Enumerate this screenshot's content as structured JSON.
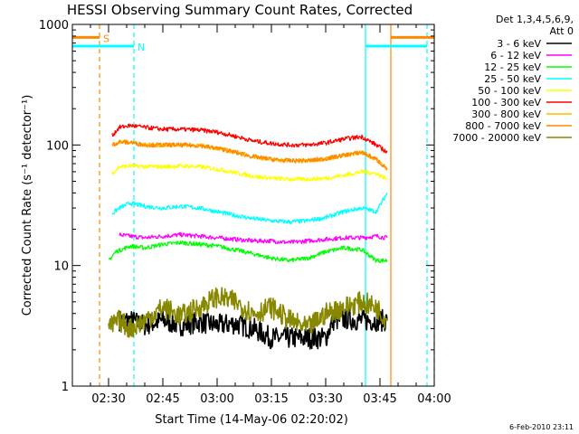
{
  "chart_data": {
    "type": "line",
    "title": "HESSI Observing Summary Count Rates, Corrected",
    "xlabel": "Start Time (14-May-06 02:20:02)",
    "ylabel": "Corrected Count Rate (s⁻¹ detector⁻¹)",
    "xlim_minutes": [
      20.0,
      120.0
    ],
    "ylim": [
      1,
      1000
    ],
    "yscale": "log",
    "x_ticks": [
      {
        "minute": 30,
        "label": "02:30"
      },
      {
        "minute": 45,
        "label": "02:45"
      },
      {
        "minute": 60,
        "label": "03:00"
      },
      {
        "minute": 75,
        "label": "03:15"
      },
      {
        "minute": 90,
        "label": "03:30"
      },
      {
        "minute": 105,
        "label": "03:45"
      },
      {
        "minute": 120,
        "label": "04:00"
      }
    ],
    "y_ticks": [
      {
        "value": 1,
        "label": "1"
      },
      {
        "value": 10,
        "label": "10"
      },
      {
        "value": 100,
        "label": "100"
      },
      {
        "value": 1000,
        "label": "1000"
      }
    ],
    "legend_header": [
      "Det 1,3,4,5,6,9,",
      "Att 0"
    ],
    "legend_placement": "right",
    "footer_date": "6-Feb-2010 23:11",
    "series": [
      {
        "name": "3 - 6 keV",
        "color": "#000000",
        "x": [
          33,
          36,
          40,
          45,
          50,
          55,
          60,
          65,
          70,
          75,
          80,
          85,
          90,
          92,
          96,
          100,
          104,
          107
        ],
        "y": [
          3.5,
          3.5,
          3.2,
          3.5,
          3.2,
          3.4,
          3.2,
          3.3,
          3.0,
          2.5,
          2.5,
          2.5,
          2.5,
          3.5,
          3.6,
          3.5,
          3.5,
          3.5
        ]
      },
      {
        "name": "6 - 12 keV",
        "color": "#ff00ff",
        "x": [
          33,
          36,
          40,
          45,
          50,
          55,
          60,
          65,
          70,
          75,
          80,
          85,
          90,
          95,
          100,
          104,
          107
        ],
        "y": [
          18,
          17.5,
          17,
          17.5,
          18,
          17.5,
          17,
          16.5,
          16,
          16,
          15.5,
          16,
          16.5,
          17,
          17,
          17.5,
          17
        ]
      },
      {
        "name": "12 - 25 keV",
        "color": "#00ff00",
        "x": [
          30,
          32,
          36,
          40,
          45,
          50,
          55,
          60,
          65,
          70,
          75,
          80,
          85,
          90,
          95,
          100,
          104,
          107
        ],
        "y": [
          11,
          13,
          14.5,
          14,
          15,
          15.5,
          15,
          14.5,
          13.5,
          12.5,
          11.5,
          11,
          11.5,
          13,
          14,
          13.5,
          11,
          11
        ]
      },
      {
        "name": "25 - 50 keV",
        "color": "#00ffff",
        "x": [
          31,
          33,
          36,
          40,
          45,
          50,
          55,
          60,
          65,
          70,
          75,
          80,
          85,
          90,
          95,
          100,
          104,
          107
        ],
        "y": [
          27,
          30,
          33,
          31,
          30,
          31,
          30,
          28,
          26,
          24.5,
          23.5,
          23,
          23.5,
          25,
          28,
          30,
          28,
          40
        ]
      },
      {
        "name": "50 - 100 keV",
        "color": "#ffff00",
        "x": [
          31,
          33,
          36,
          40,
          45,
          50,
          55,
          60,
          65,
          70,
          75,
          80,
          85,
          90,
          95,
          100,
          104,
          107
        ],
        "y": [
          58,
          66,
          67,
          66,
          66,
          67,
          66,
          63,
          59,
          55,
          53,
          52,
          52,
          53,
          56,
          60,
          58,
          52
        ]
      },
      {
        "name": "100 - 300 keV",
        "color": "#ff0000",
        "x": [
          31,
          33,
          36,
          40,
          45,
          50,
          55,
          60,
          65,
          70,
          75,
          80,
          85,
          90,
          95,
          100,
          104,
          107
        ],
        "y": [
          120,
          140,
          145,
          140,
          135,
          135,
          133,
          128,
          118,
          108,
          103,
          100,
          100,
          104,
          112,
          117,
          100,
          87
        ]
      },
      {
        "name": "300 - 800 keV",
        "color": "#ffbb00",
        "x": [
          31,
          33,
          36,
          40,
          45,
          50,
          55,
          60,
          65,
          70,
          75,
          80,
          85,
          90,
          95,
          100,
          104,
          107
        ],
        "y": [
          100,
          106,
          105,
          100,
          100,
          100,
          99,
          94,
          87,
          80,
          76,
          74,
          74,
          77,
          82,
          87,
          76,
          63
        ]
      },
      {
        "name": "800 - 7000 keV",
        "color": "#ff8800",
        "x": [
          31,
          33,
          36,
          40,
          45,
          50,
          55,
          60,
          65,
          70,
          75,
          80,
          85,
          90,
          95,
          100,
          104,
          107
        ],
        "y": [
          100,
          106,
          105,
          100,
          100,
          100,
          99,
          94,
          87,
          80,
          76,
          74,
          74,
          77,
          82,
          87,
          76,
          63
        ]
      },
      {
        "name": "7000 - 20000 keV",
        "color": "#888800",
        "x": [
          30,
          33,
          36,
          40,
          45,
          50,
          55,
          60,
          65,
          70,
          75,
          80,
          85,
          90,
          95,
          100,
          104,
          107
        ],
        "y": [
          3.0,
          3.5,
          3.0,
          3.5,
          4.5,
          3.8,
          4.5,
          5.5,
          5.0,
          4.0,
          4.5,
          3.5,
          3.0,
          4.0,
          4.5,
          5.0,
          4.5,
          3.5
        ]
      }
    ],
    "annotations": [
      {
        "label": "S",
        "color": "#ff8800",
        "segments": [
          [
            20,
            27.5
          ],
          [
            108,
            120
          ]
        ],
        "level": 780
      },
      {
        "label": "N",
        "color": "#00ffff",
        "segments": [
          [
            20,
            37
          ],
          [
            101,
            118
          ]
        ],
        "level": 660
      }
    ],
    "marker_lines": [
      {
        "minute": 27.5,
        "color": "#ff8800",
        "style": "dashed"
      },
      {
        "minute": 37,
        "color": "#00ffff",
        "style": "dashed"
      },
      {
        "minute": 101,
        "color": "#00ffff",
        "style": "solid"
      },
      {
        "minute": 108,
        "color": "#ff8800",
        "style": "solid"
      },
      {
        "minute": 118,
        "color": "#00ffff",
        "style": "dashed"
      },
      {
        "minute": 120,
        "color": "#ff8800",
        "style": "dashed"
      }
    ]
  }
}
